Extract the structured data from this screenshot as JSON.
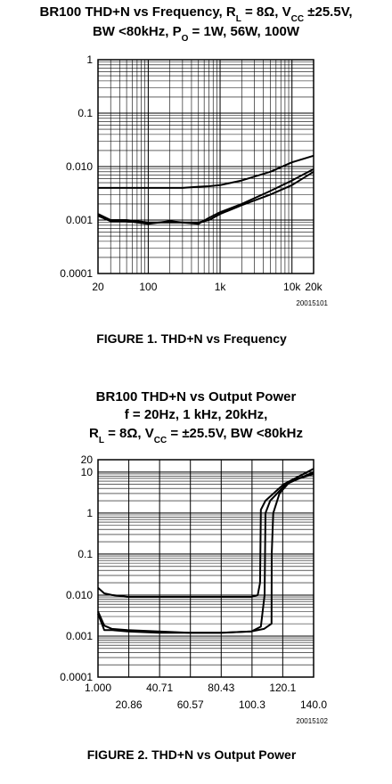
{
  "chart_data": [
    {
      "type": "line",
      "title": [
        [
          "BR100 THD+N vs Frequency, R",
          {
            "sub": "L"
          },
          " = 8Ω, V",
          {
            "sub": "CC"
          },
          " ±25.5V,"
        ],
        [
          "BW <80kHz, P",
          {
            "sub": "O"
          },
          " = 1W, 56W, 100W"
        ]
      ],
      "x": [
        20,
        30,
        50,
        100,
        200,
        300,
        500,
        700,
        1000,
        2000,
        5000,
        10000,
        20000
      ],
      "series": [
        {
          "color": "#000000",
          "values": [
            0.004,
            0.004,
            0.004,
            0.004,
            0.004,
            0.004,
            0.0042,
            0.0043,
            0.0045,
            0.0055,
            0.008,
            0.012,
            0.016
          ]
        },
        {
          "color": "#000000",
          "values": [
            0.0013,
            0.001,
            0.001,
            0.0009,
            0.0009,
            0.0009,
            0.0009,
            0.001,
            0.0013,
            0.0019,
            0.003,
            0.0045,
            0.008
          ]
        },
        {
          "color": "#000000",
          "values": [
            0.0012,
            0.00095,
            0.00095,
            0.00085,
            0.00095,
            0.0009,
            0.00085,
            0.0011,
            0.0014,
            0.002,
            0.0035,
            0.0055,
            0.009
          ]
        }
      ],
      "xlim": [
        20,
        20000
      ],
      "xlog": true,
      "xticks": [
        20,
        100,
        {
          "value": 1000,
          "label": "1k"
        },
        {
          "value": 10000,
          "label": "10k"
        },
        {
          "value": 20000,
          "label": "20k"
        }
      ],
      "ylim": [
        0.0001,
        1
      ],
      "ylog": true,
      "yticks": [
        1,
        0.1,
        {
          "value": 0.01,
          "label": "0.010"
        },
        0.001,
        0.0001
      ],
      "grid": true,
      "figure_code": "20015101",
      "caption": "FIGURE 1. THD+N vs Frequency"
    },
    {
      "type": "line",
      "title": [
        [
          "BR100 THD+N vs Output Power"
        ],
        [
          "f = 20Hz, 1 kHz, 20kHz,"
        ],
        [
          "R",
          {
            "sub": "L"
          },
          " = 8Ω, V",
          {
            "sub": "CC"
          },
          " = ±25.5V, BW <80kHz"
        ]
      ],
      "series": [
        {
          "color": "#000000",
          "x": [
            1,
            5,
            10,
            20,
            40,
            60,
            80,
            100,
            104,
            105.5,
            106,
            109,
            120.6,
            140
          ],
          "values": [
            0.015,
            0.011,
            0.01,
            0.009,
            0.009,
            0.009,
            0.009,
            0.009,
            0.01,
            0.02,
            1.2,
            2,
            5,
            12
          ]
        },
        {
          "color": "#000000",
          "x": [
            1,
            5,
            10,
            20,
            40,
            60,
            80,
            100,
            106,
            108.4,
            109,
            112,
            122,
            140
          ],
          "values": [
            0.004,
            0.0018,
            0.0015,
            0.0014,
            0.0013,
            0.0012,
            0.0012,
            0.0013,
            0.0017,
            0.01,
            1,
            2,
            5,
            10
          ]
        },
        {
          "color": "#000000",
          "x": [
            1,
            5,
            10,
            20,
            40,
            60,
            80,
            100,
            108,
            112.9,
            113,
            114,
            118,
            125,
            140
          ],
          "values": [
            0.0035,
            0.0014,
            0.0014,
            0.0013,
            0.0012,
            0.0012,
            0.0012,
            0.0013,
            0.0015,
            0.002,
            0.1,
            1,
            3,
            6,
            9
          ]
        }
      ],
      "xlim": [
        1,
        140
      ],
      "xticks": [
        {
          "value": 1,
          "label": "1.000"
        },
        20.86,
        40.71,
        60.57,
        80.43,
        100.3,
        120.1,
        {
          "value": 140,
          "label": "140.0"
        }
      ],
      "ylim": [
        0.0001,
        20
      ],
      "ylog": true,
      "yticks": [
        20,
        10,
        1,
        0.1,
        {
          "value": 0.01,
          "label": "0.010"
        },
        0.001,
        0.0001
      ],
      "grid": true,
      "figure_code": "20015102",
      "caption": "FIGURE 2. THD+N vs Output Power"
    }
  ]
}
